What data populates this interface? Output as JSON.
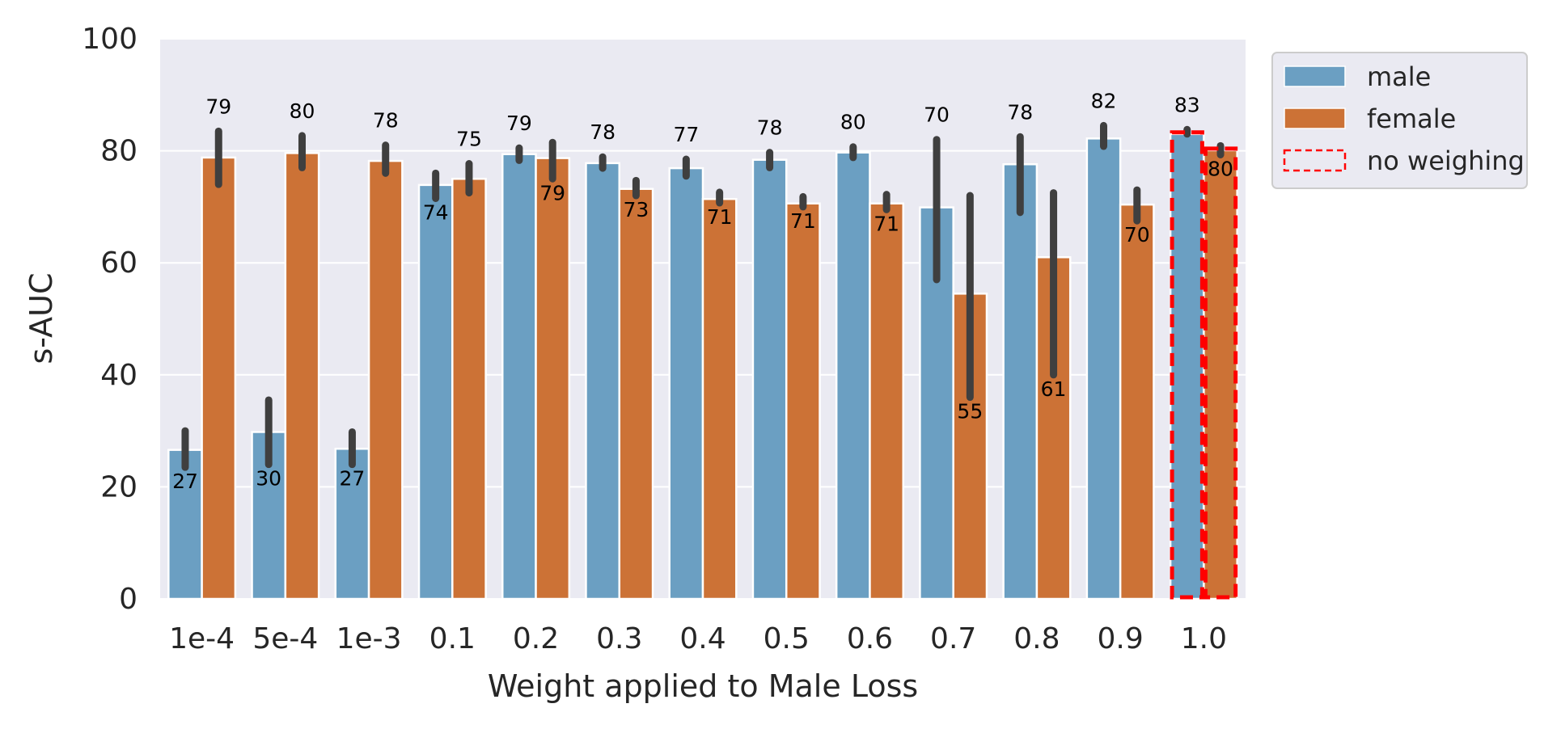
{
  "chart_data": {
    "type": "bar",
    "title": "",
    "xlabel": "Weight applied to Male Loss",
    "ylabel": "s-AUC",
    "ylim": [
      0,
      100
    ],
    "yticks": [
      0,
      20,
      40,
      60,
      80,
      100
    ],
    "grid": true,
    "legend_position": "outside-right-top",
    "categories": [
      "1e-4",
      "5e-4",
      "1e-3",
      "0.1",
      "0.2",
      "0.3",
      "0.4",
      "0.5",
      "0.6",
      "0.7",
      "0.8",
      "0.9",
      "1.0"
    ],
    "series": [
      {
        "name": "male",
        "color": "#6b9fc2",
        "values": [
          26.6,
          29.8,
          26.8,
          73.9,
          79.4,
          77.8,
          76.9,
          78.4,
          79.7,
          69.9,
          77.6,
          82.2,
          83.0
        ],
        "labels": [
          "27",
          "30",
          "27",
          "74",
          "79",
          "78",
          "77",
          "78",
          "80",
          "70",
          "78",
          "82",
          "83"
        ],
        "error_low": [
          23.5,
          24.0,
          24.0,
          71.5,
          78.3,
          76.9,
          75.5,
          77.0,
          78.8,
          57.0,
          69.0,
          80.8,
          83.0
        ],
        "error_high": [
          30.0,
          35.5,
          29.8,
          76.0,
          80.5,
          78.9,
          78.5,
          79.7,
          80.7,
          82.0,
          82.5,
          84.5,
          83.8
        ]
      },
      {
        "name": "female",
        "color": "#cc7236",
        "values": [
          78.8,
          79.6,
          78.2,
          75.0,
          78.7,
          73.2,
          71.4,
          70.6,
          70.6,
          54.5,
          61.0,
          70.4,
          80.1
        ],
        "labels": [
          "79",
          "80",
          "78",
          "75",
          "79",
          "73",
          "71",
          "71",
          "71",
          "55",
          "61",
          "70",
          "80"
        ],
        "error_low": [
          74.0,
          77.0,
          76.0,
          72.5,
          75.0,
          72.0,
          70.7,
          70.0,
          69.5,
          36.0,
          40.0,
          67.5,
          79.3
        ],
        "error_high": [
          83.5,
          82.7,
          81.0,
          77.7,
          81.5,
          74.7,
          72.6,
          71.8,
          72.2,
          72.0,
          72.5,
          73.0,
          80.9
        ]
      }
    ],
    "highlight": {
      "category": "1.0",
      "label": "no weighing",
      "color": "#ff0000",
      "style": "dashed"
    }
  }
}
